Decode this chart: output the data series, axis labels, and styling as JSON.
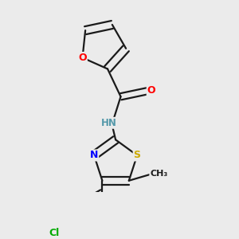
{
  "bg_color": "#ebebeb",
  "bond_color": "#1a1a1a",
  "bond_width": 1.6,
  "atom_colors": {
    "O": "#ff0000",
    "N": "#0000ff",
    "S": "#ccaa00",
    "Cl": "#00aa00",
    "C": "#1a1a1a",
    "H": "#5599aa"
  },
  "font_size": 9,
  "dbo": 0.055
}
